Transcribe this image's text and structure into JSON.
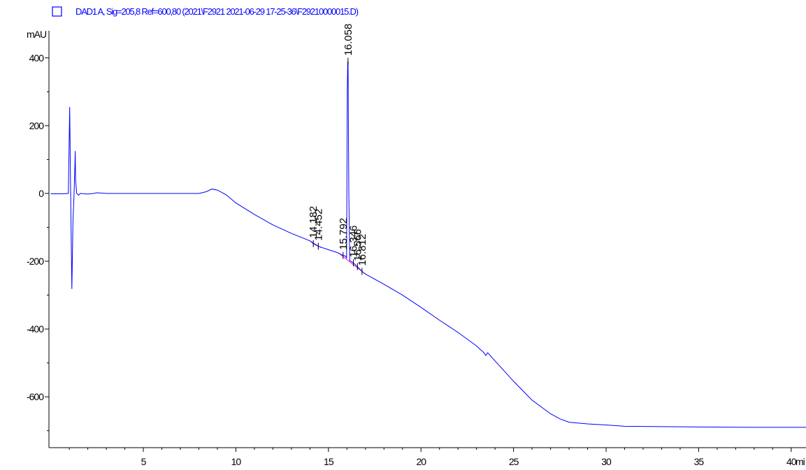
{
  "chart_data": {
    "type": "line",
    "legend": {
      "label": "DAD1 A, Sig=205,8 Ref=600,80 (2021\\F2921 2021-06-29 17-25-36\\F29210000015.D)",
      "position": "top-left",
      "color": "#0000ff"
    },
    "ylabel": "mAU",
    "xunit": "mi",
    "xlim": [
      -0.1,
      40.8
    ],
    "ylim": [
      -750,
      480
    ],
    "xticks": [
      5,
      10,
      15,
      20,
      25,
      30,
      35,
      40
    ],
    "xtick_labels": [
      "5",
      "10",
      "15",
      "20",
      "25",
      "30",
      "35",
      "40"
    ],
    "yticks": [
      400,
      200,
      0,
      -200,
      -400,
      -600
    ],
    "ytick_labels": [
      "400",
      "200",
      "0",
      "-200",
      "-400",
      "-600"
    ],
    "series": [
      {
        "color": "#0000ff",
        "x": [
          0.0,
          0.6,
          0.95,
          1.02,
          1.06,
          1.1,
          1.14,
          1.2,
          1.26,
          1.3,
          1.32,
          1.34,
          1.4,
          1.5,
          1.6,
          2.0,
          2.3,
          2.5,
          3.0,
          5.0,
          7.0,
          8.0,
          8.4,
          8.7,
          9.0,
          9.5,
          10.0,
          11.0,
          12.0,
          13.0,
          14.0,
          14.182,
          14.452,
          15.0,
          15.5,
          15.792,
          15.9,
          15.98,
          16.0,
          16.02,
          16.04,
          16.058,
          16.08,
          16.1,
          16.15,
          16.2,
          16.346,
          16.566,
          16.812,
          17.0,
          18.0,
          19.0,
          20.0,
          21.0,
          22.0,
          23.0,
          23.4,
          23.5,
          23.6,
          24.0,
          25.0,
          26.0,
          27.0,
          27.5,
          28.0,
          29.0,
          30.0,
          31.0,
          33.0,
          35.0,
          38.0,
          40.8
        ],
        "y": [
          -1,
          -1,
          0,
          255,
          60,
          -120,
          -282,
          -80,
          0,
          80,
          125,
          40,
          0,
          -5,
          0,
          -2,
          0,
          2,
          0,
          0,
          0,
          0,
          5,
          13,
          10,
          -5,
          -28,
          -62,
          -93,
          -118,
          -140,
          -148,
          -156,
          -166,
          -175,
          -183,
          -184,
          -190,
          50,
          300,
          385,
          390,
          200,
          0,
          -198,
          -200,
          -205,
          -216,
          -230,
          -238,
          -268,
          -300,
          -336,
          -374,
          -410,
          -450,
          -470,
          -478,
          -470,
          -494,
          -554,
          -610,
          -650,
          -665,
          -675,
          -680,
          -683,
          -687,
          -688,
          -689,
          -690,
          -690
        ]
      }
    ],
    "peaks": [
      {
        "rt": "14.182",
        "x": 14.182,
        "y": -148
      },
      {
        "rt": "14.452",
        "x": 14.452,
        "y": -156
      },
      {
        "rt": "15.792",
        "x": 15.792,
        "y": -183
      },
      {
        "rt": "16.058",
        "x": 16.058,
        "y": 390
      },
      {
        "rt": "16.346",
        "x": 16.346,
        "y": -205
      },
      {
        "rt": "16.566",
        "x": 16.566,
        "y": -216
      },
      {
        "rt": "16.812",
        "x": 16.812,
        "y": -230
      }
    ],
    "baseline_segments": [
      {
        "x": [
          14.0,
          14.6
        ],
        "y": [
          -140,
          -160
        ]
      },
      {
        "x": [
          15.6,
          17.0
        ],
        "y": [
          -178,
          -238
        ]
      }
    ],
    "grid": false
  }
}
